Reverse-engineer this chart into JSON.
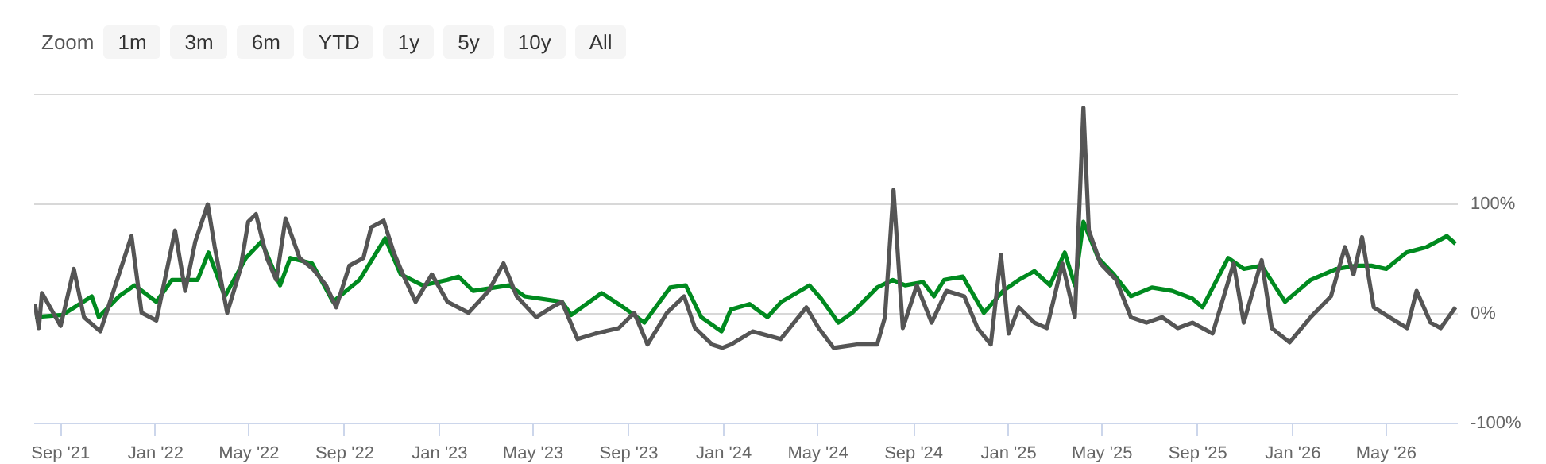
{
  "chart_data": {
    "type": "line",
    "annotations": [
      "Zoom",
      "1m",
      "3m",
      "6m",
      "YTD",
      "1y",
      "5y",
      "10y",
      "All"
    ],
    "xlim": [
      "2021-07-29",
      "2026-08-01"
    ],
    "xticks": [
      {
        "value": "2021-09-01",
        "label": "Sep '21"
      },
      {
        "value": "2022-01-01",
        "label": "Jan '22"
      },
      {
        "value": "2022-05-01",
        "label": "May '22"
      },
      {
        "value": "2022-09-01",
        "label": "Sep '22"
      },
      {
        "value": "2023-01-01",
        "label": "Jan '23"
      },
      {
        "value": "2023-05-01",
        "label": "May '23"
      },
      {
        "value": "2023-09-01",
        "label": "Sep '23"
      },
      {
        "value": "2024-01-01",
        "label": "Jan '24"
      },
      {
        "value": "2024-05-01",
        "label": "May '24"
      },
      {
        "value": "2024-09-01",
        "label": "Sep '24"
      },
      {
        "value": "2025-01-01",
        "label": "Jan '25"
      },
      {
        "value": "2025-05-01",
        "label": "May '25"
      },
      {
        "value": "2025-09-01",
        "label": "Sep '25"
      },
      {
        "value": "2026-01-01",
        "label": "Jan '26"
      },
      {
        "value": "2026-05-01",
        "label": "May '26"
      }
    ],
    "ylim": [
      -100,
      203
    ],
    "yticks": [
      {
        "value": -100,
        "label": "-100%"
      },
      {
        "value": 0,
        "label": "0%"
      },
      {
        "value": 100,
        "label": "100%"
      },
      {
        "value": 200,
        "label": null
      }
    ],
    "grid": "y",
    "line_style": "solid",
    "marker": "none",
    "series": [
      {
        "color": "#008a1f",
        "x": [
          "2021-07-30",
          "2021-09-03",
          "2021-10-11",
          "2021-10-20",
          "2021-11-15",
          "2021-12-05",
          "2022-01-02",
          "2022-01-22",
          "2022-02-24",
          "2022-03-10",
          "2022-03-31",
          "2022-04-27",
          "2022-05-17",
          "2022-06-10",
          "2022-06-23",
          "2022-07-21",
          "2022-08-17",
          "2022-09-20",
          "2022-10-23",
          "2022-11-12",
          "2022-12-10",
          "2023-01-11",
          "2023-01-25",
          "2023-02-13",
          "2023-03-31",
          "2023-04-20",
          "2023-06-07",
          "2023-06-19",
          "2023-07-28",
          "2023-08-25",
          "2023-09-21",
          "2023-10-24",
          "2023-11-13",
          "2023-12-03",
          "2023-12-29",
          "2024-01-10",
          "2024-02-03",
          "2024-02-26",
          "2024-03-15",
          "2024-04-20",
          "2024-05-05",
          "2024-05-27",
          "2024-06-14",
          "2024-07-16",
          "2024-08-05",
          "2024-08-21",
          "2024-09-13",
          "2024-09-27",
          "2024-10-10",
          "2024-11-03",
          "2024-11-30",
          "2024-12-25",
          "2025-01-14",
          "2025-02-03",
          "2025-02-23",
          "2025-03-14",
          "2025-03-27",
          "2025-04-07",
          "2025-04-26",
          "2025-05-16",
          "2025-06-07",
          "2025-07-04",
          "2025-07-30",
          "2025-08-25",
          "2025-09-07",
          "2025-10-10",
          "2025-10-30",
          "2025-11-22",
          "2025-12-22",
          "2026-01-24",
          "2026-02-26",
          "2026-03-24",
          "2026-04-12",
          "2026-05-01",
          "2026-05-27",
          "2026-06-22",
          "2026-07-18",
          "2026-07-29"
        ],
        "values": [
          -3,
          -1,
          16,
          -3,
          16,
          26,
          11,
          31,
          31,
          56,
          16,
          51,
          66,
          26,
          51,
          46,
          11,
          31,
          69,
          36,
          26,
          31,
          34,
          21,
          26,
          16,
          11,
          -1,
          19,
          6,
          -8,
          24,
          26,
          -3,
          -16,
          4,
          9,
          -3,
          11,
          26,
          14,
          -8,
          1,
          24,
          31,
          26,
          29,
          16,
          31,
          34,
          1,
          21,
          31,
          39,
          26,
          56,
          26,
          84,
          51,
          36,
          16,
          24,
          21,
          14,
          6,
          51,
          41,
          44,
          11,
          31,
          41,
          44,
          44,
          41,
          56,
          61,
          71,
          64
        ]
      },
      {
        "color": "#555555",
        "x": [
          "2021-07-30",
          "2021-08-04",
          "2021-08-08",
          "2021-09-01",
          "2021-09-18",
          "2021-10-01",
          "2021-10-22",
          "2021-12-01",
          "2021-12-14",
          "2022-01-02",
          "2022-01-26",
          "2022-02-08",
          "2022-02-21",
          "2022-03-09",
          "2022-03-18",
          "2022-04-03",
          "2022-04-20",
          "2022-04-30",
          "2022-05-10",
          "2022-05-24",
          "2022-06-05",
          "2022-06-17",
          "2022-07-05",
          "2022-07-22",
          "2022-08-08",
          "2022-08-21",
          "2022-09-07",
          "2022-09-25",
          "2022-10-05",
          "2022-10-21",
          "2022-11-03",
          "2022-11-16",
          "2022-12-01",
          "2022-12-22",
          "2023-01-11",
          "2023-02-07",
          "2023-03-05",
          "2023-03-24",
          "2023-04-10",
          "2023-05-05",
          "2023-05-25",
          "2023-06-07",
          "2023-06-27",
          "2023-07-20",
          "2023-08-19",
          "2023-09-08",
          "2023-09-25",
          "2023-10-20",
          "2023-11-11",
          "2023-11-25",
          "2023-12-17",
          "2023-12-30",
          "2024-01-10",
          "2024-02-07",
          "2024-03-14",
          "2024-04-16",
          "2024-05-02",
          "2024-05-21",
          "2024-06-20",
          "2024-07-16",
          "2024-07-26",
          "2024-08-06",
          "2024-08-18",
          "2024-09-05",
          "2024-09-24",
          "2024-10-13",
          "2024-11-05",
          "2024-11-22",
          "2024-12-09",
          "2024-12-22",
          "2025-01-01",
          "2025-01-14",
          "2025-02-03",
          "2025-02-19",
          "2025-03-11",
          "2025-03-27",
          "2025-04-07",
          "2025-04-14",
          "2025-04-29",
          "2025-05-19",
          "2025-06-07",
          "2025-06-27",
          "2025-07-17",
          "2025-08-06",
          "2025-08-25",
          "2025-09-20",
          "2025-10-17",
          "2025-10-30",
          "2025-11-22",
          "2025-12-05",
          "2025-12-28",
          "2026-01-24",
          "2026-02-19",
          "2026-03-09",
          "2026-03-20",
          "2026-03-31",
          "2026-04-15",
          "2026-05-05",
          "2026-05-28",
          "2026-06-09",
          "2026-06-27",
          "2026-07-10",
          "2026-07-29"
        ],
        "values": [
          9,
          -13,
          19,
          -11,
          41,
          -3,
          -16,
          71,
          1,
          -6,
          76,
          21,
          66,
          100,
          61,
          1,
          41,
          84,
          91,
          51,
          31,
          87,
          51,
          41,
          26,
          6,
          44,
          51,
          79,
          85,
          56,
          34,
          11,
          36,
          11,
          1,
          21,
          46,
          16,
          -3,
          6,
          11,
          -23,
          -18,
          -13,
          1,
          -28,
          1,
          16,
          -13,
          -28,
          -31,
          -28,
          -16,
          -23,
          6,
          -13,
          -31,
          -28,
          -28,
          -3,
          113,
          -13,
          26,
          -8,
          21,
          16,
          -13,
          -28,
          54,
          -18,
          6,
          -8,
          -13,
          46,
          -3,
          188,
          76,
          46,
          31,
          -3,
          -8,
          -3,
          -13,
          -8,
          -18,
          46,
          -8,
          49,
          -13,
          -26,
          -3,
          16,
          61,
          36,
          70,
          6,
          -3,
          -13,
          21,
          -8,
          -13,
          6
        ]
      }
    ]
  }
}
